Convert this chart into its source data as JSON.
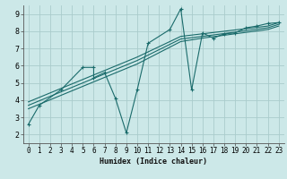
{
  "xlabel": "Humidex (Indice chaleur)",
  "xlim": [
    -0.5,
    23.5
  ],
  "ylim": [
    1.5,
    9.5
  ],
  "xticks": [
    0,
    1,
    2,
    3,
    4,
    5,
    6,
    7,
    8,
    9,
    10,
    11,
    12,
    13,
    14,
    15,
    16,
    17,
    18,
    19,
    20,
    21,
    22,
    23
  ],
  "yticks": [
    2,
    3,
    4,
    5,
    6,
    7,
    8,
    9
  ],
  "background_color": "#cce8e8",
  "grid_color": "#aacccc",
  "line_color": "#1a6b6b",
  "jagged": {
    "x": [
      0,
      1,
      3,
      5,
      6,
      6,
      7,
      8,
      9,
      10,
      11,
      13,
      14,
      15,
      16,
      17,
      18,
      19,
      20,
      21,
      22,
      23
    ],
    "y": [
      2.6,
      3.7,
      4.6,
      5.9,
      5.9,
      5.3,
      5.6,
      4.1,
      2.1,
      4.6,
      7.3,
      8.1,
      9.3,
      4.6,
      7.9,
      7.6,
      7.85,
      7.9,
      8.2,
      8.3,
      8.45,
      8.5
    ]
  },
  "trends": [
    {
      "x": [
        0,
        10,
        14,
        16,
        22,
        23
      ],
      "y": [
        3.9,
        6.5,
        7.7,
        7.85,
        8.3,
        8.5
      ]
    },
    {
      "x": [
        0,
        10,
        14,
        16,
        22,
        23
      ],
      "y": [
        3.7,
        6.3,
        7.55,
        7.7,
        8.2,
        8.4
      ]
    },
    {
      "x": [
        0,
        10,
        14,
        16,
        22,
        23
      ],
      "y": [
        3.5,
        6.1,
        7.4,
        7.6,
        8.1,
        8.3
      ]
    }
  ]
}
